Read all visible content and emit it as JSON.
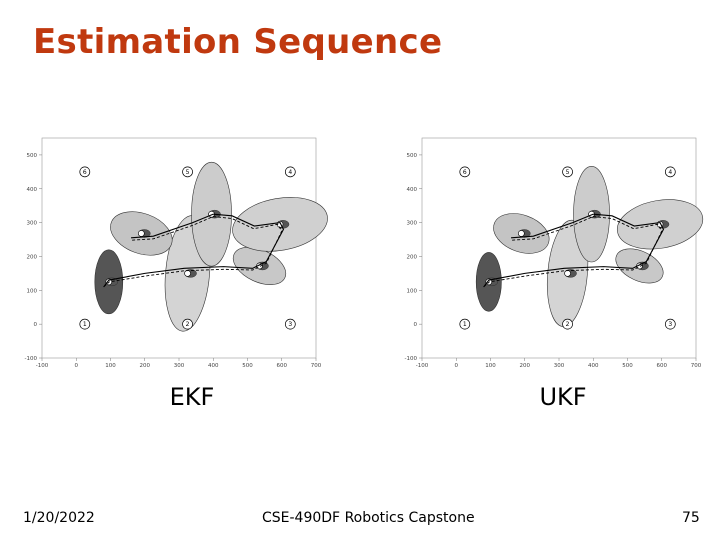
{
  "slide": {
    "title": "Estimation Sequence",
    "footer_date": "1/20/2022",
    "footer_course": "CSE-490DF Robotics Capstone",
    "footer_page": "75"
  },
  "panels": [
    {
      "id": "ekf",
      "caption": "EKF"
    },
    {
      "id": "ukf",
      "caption": "UKF"
    }
  ],
  "plot": {
    "x_ticks": [
      "-100",
      "0",
      "100",
      "200",
      "300",
      "400",
      "500",
      "600",
      "700"
    ],
    "y_ticks": [
      "500",
      "400",
      "300",
      "200",
      "100",
      "0",
      "-100"
    ],
    "landmarks": [
      {
        "label": "1",
        "x": 25,
        "y": 0
      },
      {
        "label": "2",
        "x": 325,
        "y": 0
      },
      {
        "label": "3",
        "x": 625,
        "y": 0
      },
      {
        "label": "4",
        "x": 625,
        "y": 450
      },
      {
        "label": "5",
        "x": 325,
        "y": 450
      },
      {
        "label": "6",
        "x": 25,
        "y": 450
      }
    ],
    "true_path": [
      [
        80,
        110
      ],
      [
        95,
        130
      ],
      [
        200,
        150
      ],
      [
        315,
        165
      ],
      [
        430,
        170
      ],
      [
        515,
        165
      ],
      [
        555,
        185
      ],
      [
        605,
        280
      ],
      [
        595,
        300
      ],
      [
        520,
        290
      ],
      [
        455,
        320
      ],
      [
        400,
        325
      ],
      [
        340,
        300
      ],
      [
        225,
        260
      ],
      [
        160,
        255
      ]
    ],
    "est_path": [
      [
        80,
        110
      ],
      [
        97,
        125
      ],
      [
        200,
        142
      ],
      [
        318,
        158
      ],
      [
        430,
        162
      ],
      [
        515,
        160
      ],
      [
        555,
        180
      ],
      [
        600,
        275
      ],
      [
        588,
        295
      ],
      [
        518,
        282
      ],
      [
        455,
        312
      ],
      [
        400,
        318
      ],
      [
        340,
        292
      ],
      [
        225,
        252
      ],
      [
        160,
        248
      ]
    ]
  }
}
